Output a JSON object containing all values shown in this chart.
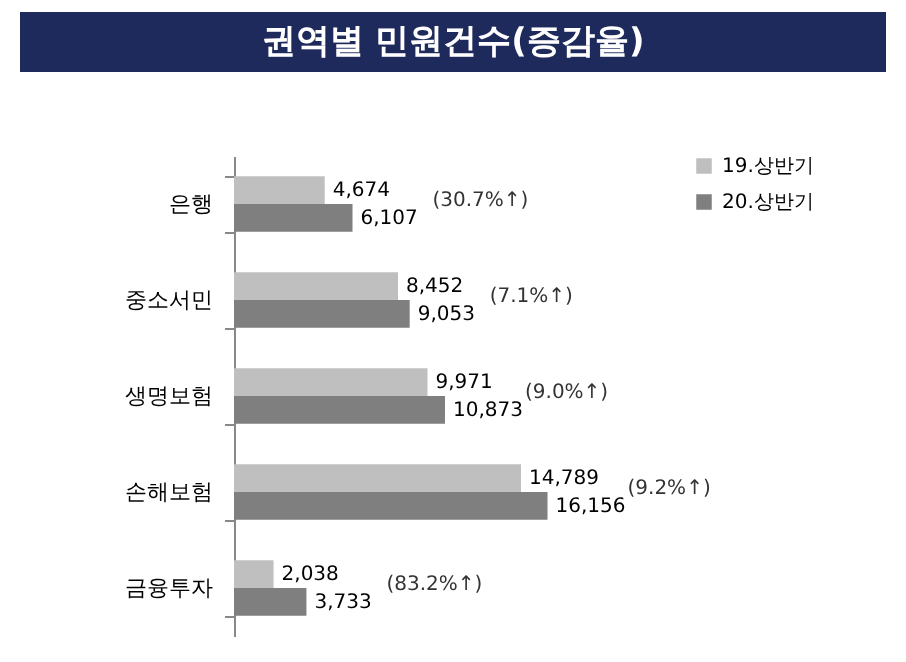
{
  "chart_data": {
    "type": "bar",
    "title": "권역별 민원건수(증감율)",
    "orientation": "horizontal",
    "categories": [
      "은행",
      "중소서민",
      "생명보험",
      "손해보험",
      "금융투자"
    ],
    "series": [
      {
        "name": "19.상반기",
        "color": "#bfbfbf",
        "values": [
          4674,
          8452,
          9971,
          14789,
          2038
        ],
        "value_labels": [
          "4,674",
          "8,452",
          "9,971",
          "14,789",
          "2,038"
        ]
      },
      {
        "name": "20.상반기",
        "color": "#7f7f7f",
        "values": [
          6107,
          9053,
          10873,
          16156,
          3733
        ],
        "value_labels": [
          "6,107",
          "9,053",
          "10,873",
          "16,156",
          "3,733"
        ]
      }
    ],
    "legend": "top right",
    "annotations": [
      "(30.7%↑)",
      "(7.1%↑)",
      "(9.0%↑)",
      "(9.2%↑)",
      "(83.2%↑)"
    ]
  }
}
